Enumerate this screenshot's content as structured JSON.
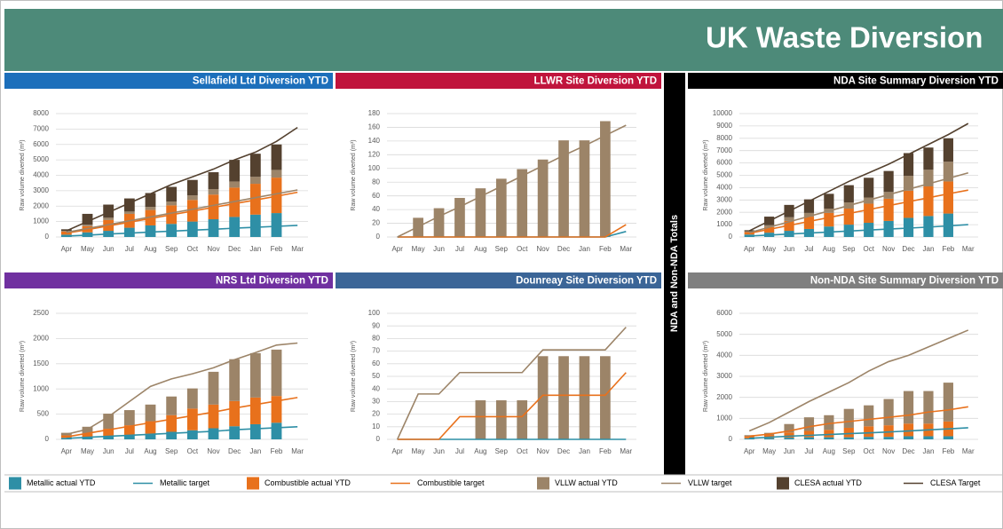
{
  "title": "UK Waste Diversion",
  "side_label": "NDA and Non-NDA Totals",
  "legend": [
    {
      "name": "Metallic actual YTD",
      "color": "#2e8fa6",
      "kind": "bar"
    },
    {
      "name": "Metallic target",
      "color": "#2e8fa6",
      "kind": "line"
    },
    {
      "name": "Combustible actual YTD",
      "color": "#e8711c",
      "kind": "bar"
    },
    {
      "name": "Combustible target",
      "color": "#e8711c",
      "kind": "line"
    },
    {
      "name": "VLLW actual YTD",
      "color": "#9c8468",
      "kind": "bar"
    },
    {
      "name": "VLLW target",
      "color": "#9c8468",
      "kind": "line"
    },
    {
      "name": "CLESA actual YTD",
      "color": "#54412f",
      "kind": "bar"
    },
    {
      "name": "CLESA Target",
      "color": "#54412f",
      "kind": "line"
    }
  ],
  "chart_data": [
    {
      "type": "bar_line",
      "title": "Sellafield Ltd Diversion YTD",
      "header_color": "#1c6fbb",
      "ylabel": "Raw volume diverted (m³)",
      "categories": [
        "Apr",
        "May",
        "Jun",
        "Jul",
        "Aug",
        "Sep",
        "Oct",
        "Nov",
        "Dec",
        "Jan",
        "Feb",
        "Mar"
      ],
      "ylim": [
        0,
        8000
      ],
      "yticks": [
        0,
        1000,
        2000,
        3000,
        4000,
        5000,
        6000,
        7000,
        8000
      ],
      "grid": true,
      "series": [
        [
          150,
          300,
          400,
          600,
          750,
          850,
          1000,
          1150,
          1300,
          1450,
          1550,
          null
        ],
        [
          60,
          120,
          190,
          250,
          320,
          380,
          440,
          500,
          570,
          630,
          690,
          750
        ],
        [
          200,
          400,
          700,
          900,
          1000,
          1200,
          1400,
          1600,
          1900,
          2000,
          2300,
          null
        ],
        [
          250,
          480,
          720,
          960,
          1200,
          1440,
          1680,
          1920,
          2160,
          2400,
          2640,
          2900
        ],
        [
          50,
          100,
          150,
          150,
          200,
          250,
          300,
          350,
          400,
          450,
          500,
          null
        ],
        [
          300,
          550,
          800,
          1050,
          1300,
          1550,
          1800,
          2050,
          2300,
          2550,
          2800,
          3050
        ],
        [
          100,
          700,
          850,
          850,
          900,
          950,
          1000,
          1100,
          1400,
          1500,
          1650,
          null
        ],
        [
          400,
          1000,
          1600,
          2200,
          2800,
          3400,
          3900,
          4400,
          5000,
          5500,
          6200,
          7100
        ]
      ]
    },
    {
      "type": "bar_line",
      "title": "LLWR Site Diversion YTD",
      "header_color": "#c0143c",
      "ylabel": "Raw volume diverted (m³)",
      "categories": [
        "Apr",
        "May",
        "Jun",
        "Jul",
        "Aug",
        "Sep",
        "Oct",
        "Nov",
        "Dec",
        "Jan",
        "Feb",
        "Mar"
      ],
      "ylim": [
        0,
        180
      ],
      "yticks": [
        0,
        20,
        40,
        60,
        80,
        100,
        120,
        140,
        160,
        180
      ],
      "grid": true,
      "series": [
        null,
        [
          0,
          0,
          0,
          0,
          0,
          0,
          0,
          0,
          0,
          0,
          0,
          8
        ],
        null,
        [
          0,
          0,
          0,
          0,
          0,
          0,
          0,
          0,
          0,
          0,
          0,
          18
        ],
        [
          0,
          28,
          42,
          57,
          71,
          85,
          99,
          113,
          141,
          141,
          169,
          null
        ],
        [
          0,
          15,
          30,
          44,
          59,
          74,
          89,
          104,
          119,
          133,
          148,
          163
        ],
        null,
        null
      ]
    },
    {
      "type": "bar_line",
      "title": "NDA Site Summary Diversion YTD",
      "header_color": "#000000",
      "ylabel": "Raw volume diverted (m³)",
      "categories": [
        "Apr",
        "May",
        "Jun",
        "Jul",
        "Aug",
        "Sep",
        "Oct",
        "Nov",
        "Dec",
        "Jan",
        "Feb",
        "Mar"
      ],
      "ylim": [
        0,
        10000
      ],
      "yticks": [
        0,
        1000,
        2000,
        3000,
        4000,
        5000,
        6000,
        7000,
        8000,
        9000,
        10000
      ],
      "grid": true,
      "series": [
        [
          200,
          350,
          500,
          650,
          850,
          1000,
          1150,
          1300,
          1550,
          1700,
          1900,
          null
        ],
        [
          80,
          160,
          240,
          320,
          400,
          480,
          560,
          640,
          720,
          800,
          900,
          1000
        ],
        [
          200,
          450,
          800,
          1000,
          1100,
          1300,
          1550,
          1800,
          2200,
          2400,
          2600,
          null
        ],
        [
          300,
          620,
          940,
          1260,
          1580,
          1900,
          2220,
          2540,
          2860,
          3180,
          3500,
          3800
        ],
        [
          50,
          150,
          300,
          300,
          350,
          500,
          500,
          550,
          1200,
          1350,
          1600,
          null
        ],
        [
          350,
          790,
          1230,
          1670,
          2110,
          2550,
          2990,
          3430,
          3870,
          4310,
          4750,
          5200
        ],
        [
          100,
          700,
          1000,
          1100,
          1200,
          1400,
          1600,
          1700,
          1850,
          1800,
          1900,
          null
        ],
        [
          500,
          1300,
          2100,
          2900,
          3700,
          4500,
          5200,
          5900,
          6700,
          7500,
          8300,
          9200
        ]
      ]
    },
    {
      "type": "bar_line",
      "title": "NRS Ltd Diversion YTD",
      "header_color": "#7030a0",
      "ylabel": "Raw volume diverted (m³)",
      "categories": [
        "Apr",
        "May",
        "Jun",
        "Jul",
        "Aug",
        "Sep",
        "Oct",
        "Nov",
        "Dec",
        "Jan",
        "Feb",
        "Mar"
      ],
      "ylim": [
        0,
        2500
      ],
      "yticks": [
        0,
        500,
        1000,
        1500,
        2000,
        2500
      ],
      "grid": true,
      "series": [
        [
          30,
          40,
          60,
          80,
          110,
          150,
          180,
          220,
          260,
          300,
          330,
          null
        ],
        [
          20,
          40,
          60,
          80,
          100,
          120,
          140,
          160,
          190,
          210,
          230,
          250
        ],
        [
          50,
          80,
          150,
          200,
          250,
          330,
          430,
          470,
          500,
          530,
          530,
          null
        ],
        [
          50,
          120,
          190,
          260,
          330,
          400,
          470,
          540,
          620,
          690,
          760,
          830
        ],
        [
          50,
          130,
          300,
          300,
          330,
          370,
          400,
          650,
          830,
          880,
          920,
          null
        ],
        [
          100,
          200,
          450,
          750,
          1050,
          1200,
          1300,
          1420,
          1580,
          1720,
          1870,
          1910
        ],
        null,
        null
      ]
    },
    {
      "type": "bar_line",
      "title": "Dounreay Site Diversion YTD",
      "header_color": "#3b6597",
      "ylabel": "Raw volume diverted (m³)",
      "categories": [
        "Apr",
        "May",
        "Jun",
        "Jul",
        "Aug",
        "Sep",
        "Oct",
        "Nov",
        "Dec",
        "Jan",
        "Feb",
        "Mar"
      ],
      "ylim": [
        0,
        100
      ],
      "yticks": [
        0,
        10,
        20,
        30,
        40,
        50,
        60,
        70,
        80,
        90,
        100
      ],
      "grid": true,
      "series": [
        null,
        [
          0,
          0,
          0,
          0,
          0,
          0,
          0,
          0,
          0,
          0,
          0,
          0
        ],
        null,
        [
          0,
          0,
          0,
          18,
          18,
          18,
          18,
          35,
          35,
          35,
          35,
          53
        ],
        [
          0,
          0,
          0,
          0,
          31,
          31,
          31,
          66,
          66,
          66,
          66,
          null
        ],
        [
          0,
          36,
          36,
          53,
          53,
          53,
          53,
          71,
          71,
          71,
          71,
          89
        ],
        null,
        null
      ]
    },
    {
      "type": "bar_line",
      "title": "Non-NDA Site Summary Diversion YTD",
      "header_color": "#7f7f7f",
      "ylabel": "Raw volume diverted (m³)",
      "categories": [
        "Apr",
        "May",
        "Jun",
        "Jul",
        "Aug",
        "Sep",
        "Oct",
        "Nov",
        "Dec",
        "Jan",
        "Feb",
        "Mar"
      ],
      "ylim": [
        0,
        6000
      ],
      "yticks": [
        0,
        1000,
        2000,
        3000,
        4000,
        5000,
        6000
      ],
      "grid": true,
      "series": [
        [
          50,
          60,
          80,
          100,
          100,
          100,
          120,
          120,
          150,
          150,
          150,
          null
        ],
        [
          50,
          100,
          150,
          190,
          230,
          270,
          310,
          350,
          400,
          450,
          500,
          550
        ],
        [
          100,
          150,
          250,
          300,
          350,
          450,
          500,
          550,
          600,
          600,
          700,
          null
        ],
        [
          150,
          250,
          400,
          600,
          750,
          850,
          950,
          1050,
          1150,
          1300,
          1400,
          1550
        ],
        [
          50,
          100,
          400,
          650,
          700,
          900,
          1000,
          1250,
          1550,
          1550,
          1850,
          null
        ],
        [
          400,
          800,
          1300,
          1800,
          2250,
          2700,
          3250,
          3700,
          4000,
          4400,
          4800,
          5200
        ],
        null,
        null
      ]
    }
  ]
}
